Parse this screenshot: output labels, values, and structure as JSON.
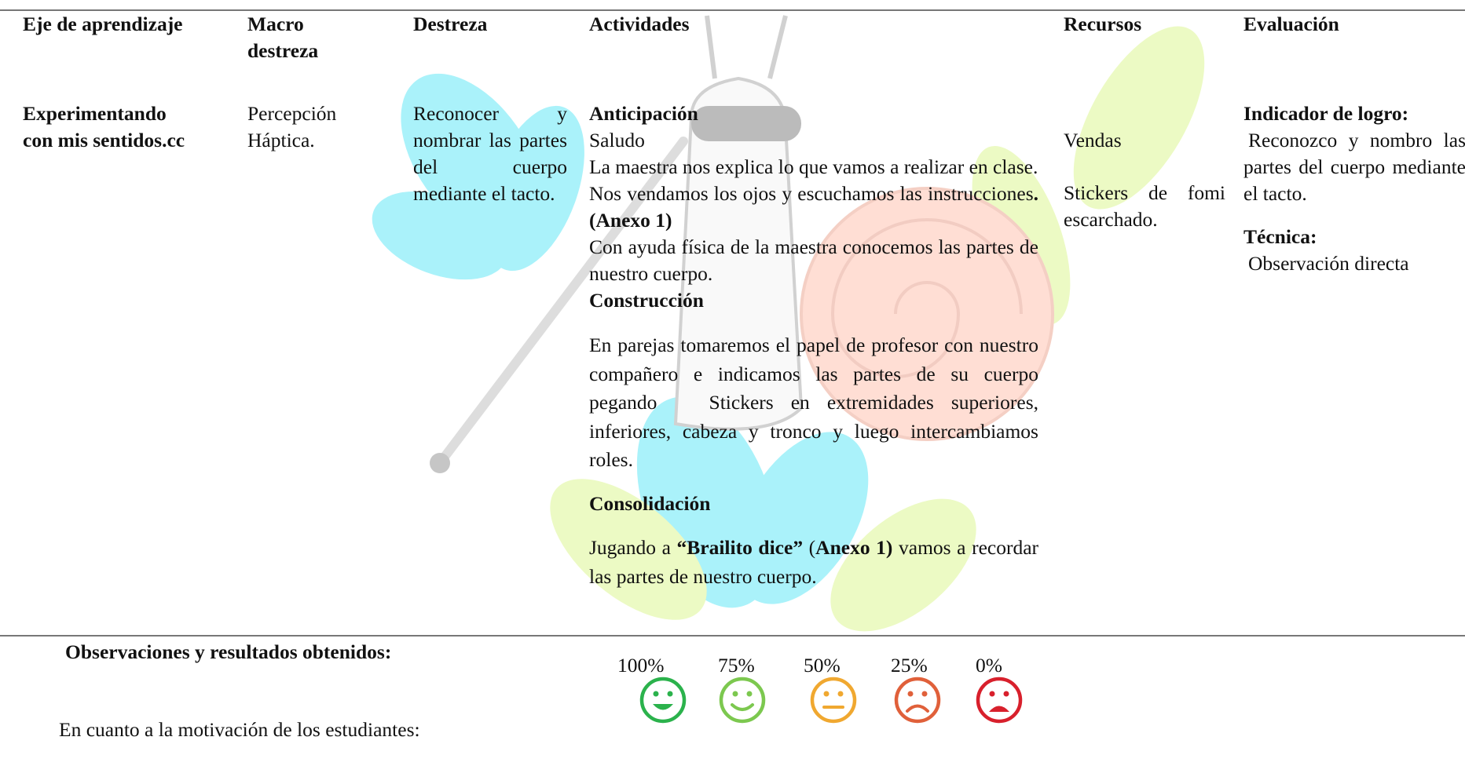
{
  "table": {
    "headers": [
      "Eje de aprendizaje",
      "Macro destreza",
      "Destreza",
      "Actividades",
      "Recursos",
      "Evaluación"
    ],
    "eje": [
      "Experimentando",
      "con mis sentidos.cc"
    ],
    "macro": "Percepción Háptica.",
    "destreza": "Reconocer y nombrar las partes del cuerpo mediante el tacto.",
    "activities": [
      {
        "runs": [
          {
            "text": "Anticipación",
            "bold": true
          }
        ]
      },
      {
        "runs": [
          {
            "text": "Saludo",
            "bold": false
          }
        ]
      },
      {
        "runs": [
          {
            "text": "La maestra nos explica lo que vamos a realizar en clase.",
            "bold": false
          }
        ]
      },
      {
        "runs": [
          {
            "text": "Nos vendamos los ojos y escuchamos las instrucciones",
            "bold": false
          },
          {
            "text": ". (Anexo 1)",
            "bold": true
          }
        ]
      },
      {
        "runs": [
          {
            "text": "Con ayuda física de la maestra conocemos las partes de nuestro cuerpo.",
            "bold": false
          }
        ]
      },
      {
        "runs": [
          {
            "text": "Construcción",
            "bold": true
          }
        ]
      },
      {
        "runs": [
          {
            "text": "En parejas tomaremos el papel de profesor con nuestro compañero e indicamos las partes de su cuerpo pegando   Stickers en extremidades superiores, inferiores, cabeza y tronco y luego intercambiamos roles.",
            "bold": false
          }
        ]
      },
      {
        "runs": [
          {
            "text": "Consolidación",
            "bold": true
          }
        ]
      },
      {
        "runs": [
          {
            "text": "Jugando a ",
            "bold": false
          },
          {
            "text": "“Brailito dice”",
            "bold": true
          },
          {
            "text": " (",
            "bold": false
          },
          {
            "text": "Anexo 1)",
            "bold": true
          },
          {
            "text": " vamos a recordar las partes de nuestro cuerpo.",
            "bold": false
          }
        ]
      }
    ],
    "resources": [
      "Vendas",
      "Stickers de fomi escarchado."
    ],
    "evaluation": [
      {
        "label": "Indicador de logro:",
        "text": "Reconozco y nombro las partes del cuerpo mediante el tacto."
      },
      {
        "label": "Técnica:",
        "text": "Observación directa"
      }
    ]
  },
  "footer": {
    "title": "Observaciones y resultados obtenidos:",
    "question": "En cuanto a la motivación de los estudiantes:",
    "scale": [
      {
        "label": "100%",
        "color": "#2bb24c"
      },
      {
        "label": "75%",
        "color": "#7cc84f"
      },
      {
        "label": "50%",
        "color": "#f0a830"
      },
      {
        "label": "25%",
        "color": "#e0603a"
      },
      {
        "label": "0%",
        "color": "#d8202c"
      }
    ]
  }
}
